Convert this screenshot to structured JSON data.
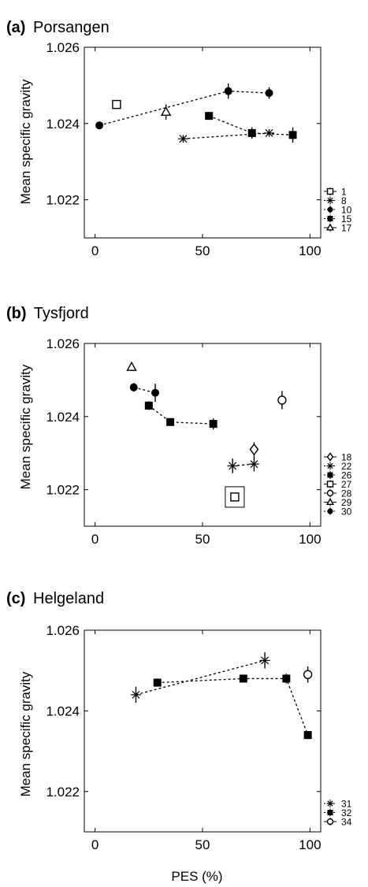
{
  "panels": [
    {
      "letter": "(a)",
      "title": "Porsangen",
      "ylabel": "Mean specific gravity",
      "xlabel": "",
      "legend": [
        "1",
        "8",
        "10",
        "15",
        "17"
      ]
    },
    {
      "letter": "(b)",
      "title": "Tysfjord",
      "ylabel": "Mean specific gravity",
      "xlabel": "",
      "legend": [
        "18",
        "22",
        "26",
        "27",
        "28",
        "29",
        "30"
      ]
    },
    {
      "letter": "(c)",
      "title": "Helgeland",
      "ylabel": "Mean specific gravity",
      "xlabel": "PES (%)",
      "legend": [
        "31",
        "32",
        "34"
      ]
    }
  ],
  "chart_data": [
    {
      "type": "scatter",
      "title": "Porsangen",
      "xlabel": "",
      "ylabel": "Mean specific gravity",
      "xlim": [
        -5,
        105
      ],
      "ylim": [
        1.021,
        1.026
      ],
      "xticks": [
        0,
        50,
        100
      ],
      "yticks": [
        1.022,
        1.024,
        1.026
      ],
      "ytick_labels": [
        "1.022",
        "1.024",
        "1.026"
      ],
      "grid": false,
      "legend_position": "right-bottom",
      "series": [
        {
          "name": "1",
          "marker": "square-open",
          "connected": false,
          "x": [
            10
          ],
          "y": [
            1.0245
          ],
          "err": [
            0.00012
          ]
        },
        {
          "name": "8",
          "marker": "star",
          "connected": true,
          "x": [
            41,
            81
          ],
          "y": [
            1.0236,
            1.02375
          ],
          "err": [
            0.0001,
            0.0001
          ]
        },
        {
          "name": "10",
          "marker": "circle-filled",
          "connected": true,
          "x": [
            2,
            62,
            81
          ],
          "y": [
            1.02395,
            1.02485,
            1.0248
          ],
          "err": [
            0.0001,
            0.0002,
            0.00015
          ]
        },
        {
          "name": "15",
          "marker": "square-filled",
          "connected": true,
          "x": [
            53,
            73,
            92
          ],
          "y": [
            1.0242,
            1.02375,
            1.0237
          ],
          "err": [
            0.0001,
            0.00015,
            0.0002
          ]
        },
        {
          "name": "17",
          "marker": "triangle-open",
          "connected": false,
          "x": [
            33
          ],
          "y": [
            1.0243
          ],
          "err": [
            0.0002
          ]
        }
      ]
    },
    {
      "type": "scatter",
      "title": "Tysfjord",
      "xlabel": "",
      "ylabel": "Mean specific gravity",
      "xlim": [
        -5,
        105
      ],
      "ylim": [
        1.021,
        1.026
      ],
      "xticks": [
        0,
        50,
        100
      ],
      "yticks": [
        1.022,
        1.024,
        1.026
      ],
      "ytick_labels": [
        "1.022",
        "1.024",
        "1.026"
      ],
      "grid": false,
      "legend_position": "right-bottom",
      "series": [
        {
          "name": "18",
          "marker": "diamond-open",
          "connected": false,
          "x": [
            74
          ],
          "y": [
            1.0231
          ],
          "err": [
            0.0002
          ]
        },
        {
          "name": "22",
          "marker": "star",
          "connected": true,
          "x": [
            64,
            74
          ],
          "y": [
            1.02265,
            1.0227
          ],
          "err": [
            0.0002,
            0.0002
          ]
        },
        {
          "name": "26",
          "marker": "square-filled",
          "connected": true,
          "x": [
            25,
            35,
            55
          ],
          "y": [
            1.0243,
            1.02385,
            1.0238
          ],
          "err": [
            0.00012,
            0.0001,
            0.00015
          ]
        },
        {
          "name": "27",
          "marker": "square-open",
          "connected": false,
          "x": [
            65
          ],
          "y": [
            1.0218
          ],
          "err": [
            0.0001
          ]
        },
        {
          "name": "28",
          "marker": "circle-open",
          "connected": false,
          "x": [
            87
          ],
          "y": [
            1.02445
          ],
          "err": [
            0.00025
          ]
        },
        {
          "name": "29",
          "marker": "triangle-open",
          "connected": false,
          "x": [
            17
          ],
          "y": [
            1.02535
          ],
          "err": [
            0.0001
          ]
        },
        {
          "name": "30",
          "marker": "circle-filled",
          "connected": true,
          "x": [
            18,
            28
          ],
          "y": [
            1.0248,
            1.02465
          ],
          "err": [
            0.00012,
            0.00025
          ]
        }
      ],
      "annotations": [
        {
          "type": "box",
          "around_series": "27"
        }
      ]
    },
    {
      "type": "scatter",
      "title": "Helgeland",
      "xlabel": "PES (%)",
      "ylabel": "Mean specific gravity",
      "xlim": [
        -5,
        105
      ],
      "ylim": [
        1.021,
        1.026
      ],
      "xticks": [
        0,
        50,
        100
      ],
      "yticks": [
        1.022,
        1.024,
        1.026
      ],
      "ytick_labels": [
        "1.022",
        "1.024",
        "1.026"
      ],
      "grid": false,
      "legend_position": "right-bottom",
      "series": [
        {
          "name": "31",
          "marker": "star",
          "connected": true,
          "x": [
            19,
            79
          ],
          "y": [
            1.0244,
            1.02525
          ],
          "err": [
            0.0002,
            0.0002
          ]
        },
        {
          "name": "32",
          "marker": "square-filled",
          "connected": true,
          "x": [
            29,
            69,
            89,
            99
          ],
          "y": [
            1.0247,
            1.0248,
            1.0248,
            1.0234
          ],
          "err": [
            0.0001,
            0.0001,
            0.00012,
            0.0001
          ]
        },
        {
          "name": "34",
          "marker": "circle-open",
          "connected": false,
          "x": [
            99
          ],
          "y": [
            1.0249
          ],
          "err": [
            0.0002
          ]
        }
      ]
    }
  ]
}
